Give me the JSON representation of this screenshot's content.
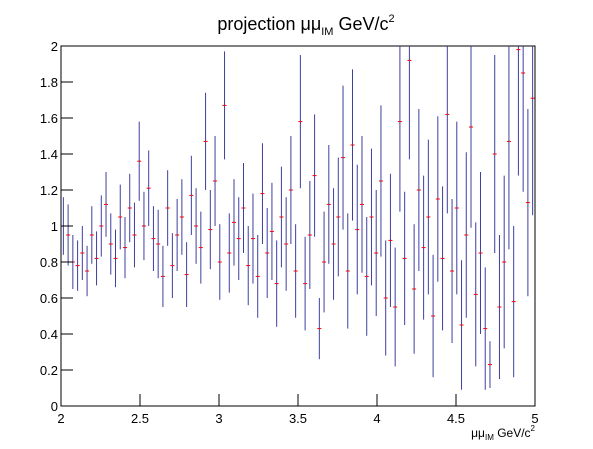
{
  "chart_data": {
    "type": "errorbar",
    "title": {
      "main": "projection μμ",
      "sub": "IM",
      "rest": " GeV/c",
      "sup": "2"
    },
    "x_label": {
      "main": "μμ",
      "sub": "IM",
      "rest": " GeV/c",
      "sup": "2"
    },
    "xlim": [
      2,
      5
    ],
    "ylim": [
      0,
      2
    ],
    "xticks": [
      2,
      2.5,
      3,
      3.5,
      4,
      4.5,
      5
    ],
    "yticks": [
      0,
      0.2,
      0.4,
      0.6,
      0.8,
      1,
      1.2,
      1.4,
      1.6,
      1.8,
      2
    ],
    "bar_color": "#3f3fa0",
    "marker_color": "#ff0000",
    "x": [
      2.015,
      2.045,
      2.075,
      2.105,
      2.135,
      2.165,
      2.195,
      2.225,
      2.255,
      2.285,
      2.315,
      2.345,
      2.375,
      2.405,
      2.435,
      2.465,
      2.495,
      2.525,
      2.555,
      2.585,
      2.615,
      2.645,
      2.675,
      2.705,
      2.735,
      2.765,
      2.795,
      2.825,
      2.855,
      2.885,
      2.915,
      2.945,
      2.975,
      3.005,
      3.035,
      3.065,
      3.095,
      3.125,
      3.155,
      3.185,
      3.215,
      3.245,
      3.275,
      3.305,
      3.335,
      3.365,
      3.395,
      3.425,
      3.455,
      3.485,
      3.515,
      3.545,
      3.575,
      3.605,
      3.635,
      3.665,
      3.695,
      3.725,
      3.755,
      3.785,
      3.815,
      3.845,
      3.875,
      3.905,
      3.935,
      3.965,
      3.995,
      4.025,
      4.055,
      4.085,
      4.115,
      4.145,
      4.175,
      4.205,
      4.235,
      4.265,
      4.295,
      4.325,
      4.355,
      4.385,
      4.415,
      4.445,
      4.475,
      4.505,
      4.535,
      4.565,
      4.595,
      4.625,
      4.655,
      4.685,
      4.715,
      4.745,
      4.775,
      4.805,
      4.835,
      4.865,
      4.895,
      4.925,
      4.955,
      4.985
    ],
    "values": [
      1.0,
      0.95,
      0.8,
      0.78,
      0.85,
      0.75,
      0.95,
      0.82,
      1.0,
      1.12,
      0.9,
      0.82,
      1.05,
      0.88,
      1.1,
      0.95,
      1.36,
      1.0,
      1.21,
      0.93,
      0.9,
      0.72,
      1.1,
      0.78,
      0.95,
      1.05,
      0.73,
      1.17,
      1.0,
      0.88,
      1.47,
      0.98,
      1.25,
      0.8,
      1.67,
      0.85,
      1.02,
      0.93,
      1.1,
      0.78,
      0.93,
      0.72,
      1.18,
      0.85,
      0.97,
      0.68,
      1.05,
      0.9,
      1.2,
      0.75,
      1.58,
      0.68,
      0.95,
      1.28,
      0.43,
      0.8,
      1.12,
      0.9,
      1.05,
      1.38,
      0.75,
      1.45,
      0.98,
      1.12,
      0.72,
      1.05,
      0.85,
      1.25,
      0.6,
      0.92,
      0.55,
      1.58,
      0.82,
      1.92,
      0.65,
      1.2,
      0.88,
      1.05,
      0.5,
      1.15,
      0.82,
      1.62,
      0.75,
      1.1,
      0.45,
      0.95,
      1.55,
      0.62,
      0.85,
      0.43,
      0.23,
      1.4,
      0.55,
      0.8,
      1.47,
      0.58,
      1.98,
      1.85,
      1.13,
      1.71
    ],
    "errors": [
      0.16,
      0.17,
      0.15,
      0.14,
      0.15,
      0.14,
      0.16,
      0.15,
      0.17,
      0.18,
      0.17,
      0.16,
      0.18,
      0.17,
      0.19,
      0.18,
      0.22,
      0.19,
      0.21,
      0.18,
      0.19,
      0.17,
      0.21,
      0.18,
      0.2,
      0.21,
      0.18,
      0.22,
      0.21,
      0.2,
      0.27,
      0.22,
      0.25,
      0.21,
      0.3,
      0.22,
      0.24,
      0.23,
      0.25,
      0.22,
      0.25,
      0.23,
      0.28,
      0.25,
      0.27,
      0.24,
      0.28,
      0.26,
      0.3,
      0.26,
      0.37,
      0.26,
      0.3,
      0.34,
      0.17,
      0.28,
      0.33,
      0.31,
      0.33,
      0.4,
      0.32,
      0.42,
      0.36,
      0.38,
      0.33,
      0.38,
      0.35,
      0.42,
      0.32,
      0.37,
      0.33,
      0.5,
      0.37,
      0.55,
      0.36,
      0.45,
      0.4,
      0.43,
      0.34,
      0.46,
      0.4,
      0.55,
      0.4,
      0.48,
      0.36,
      0.46,
      0.56,
      0.4,
      0.45,
      0.34,
      0.13,
      0.55,
      0.4,
      0.48,
      0.6,
      0.42,
      0.7,
      0.66,
      0.52,
      0.65
    ]
  }
}
